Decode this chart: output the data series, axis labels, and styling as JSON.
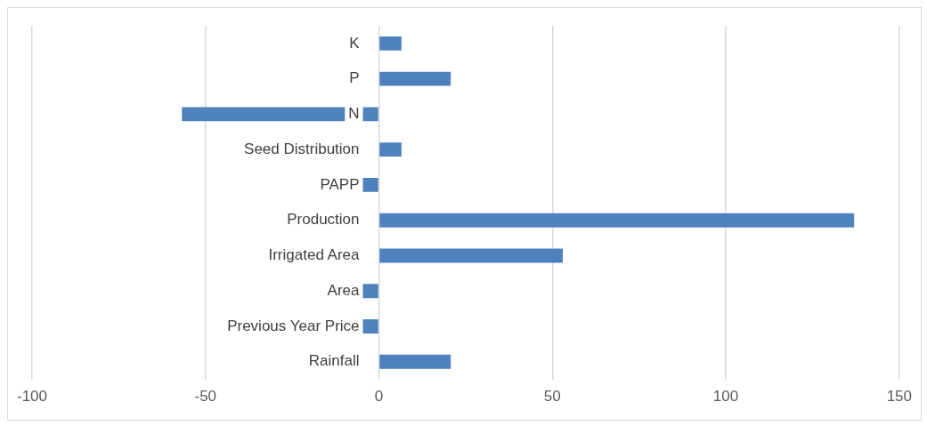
{
  "chart_data": {
    "type": "bar",
    "orientation": "horizontal",
    "categories": [
      "K",
      "P",
      "N",
      "Seed Distribution",
      "PAPP",
      "Production",
      "Irrigated Area",
      "Area",
      "Previous Year Price",
      "Rainfall"
    ],
    "values": [
      6.5,
      20.7,
      -56.8,
      6.5,
      -5.5,
      137,
      53,
      -5.5,
      -5.5,
      20.7
    ],
    "color": "#4f81bd",
    "xlim": [
      -100,
      150
    ],
    "xticks": [
      -100,
      -50,
      0,
      50,
      100,
      150
    ],
    "grid": "x"
  }
}
